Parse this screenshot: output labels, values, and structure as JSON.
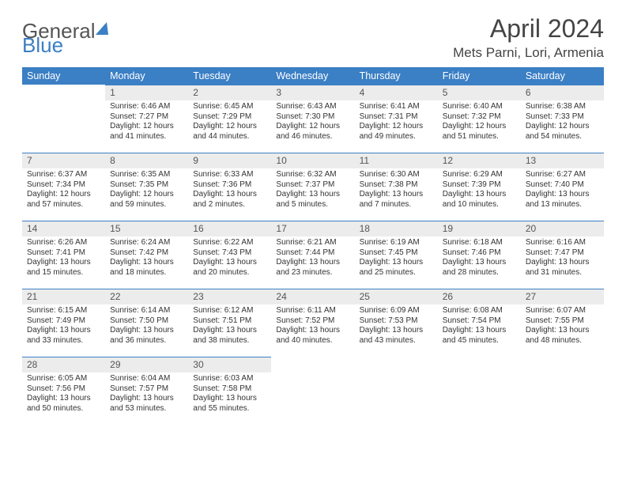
{
  "logo": {
    "word1": "General",
    "word2": "Blue"
  },
  "title": "April 2024",
  "location": "Mets Parni, Lori, Armenia",
  "colors": {
    "primary": "#3b7fc4",
    "header_bg": "#ececec",
    "text": "#333"
  },
  "day_headers": [
    "Sunday",
    "Monday",
    "Tuesday",
    "Wednesday",
    "Thursday",
    "Friday",
    "Saturday"
  ],
  "weeks": [
    [
      null,
      {
        "n": "1",
        "sr": "Sunrise: 6:46 AM",
        "ss": "Sunset: 7:27 PM",
        "dl": "Daylight: 12 hours and 41 minutes."
      },
      {
        "n": "2",
        "sr": "Sunrise: 6:45 AM",
        "ss": "Sunset: 7:29 PM",
        "dl": "Daylight: 12 hours and 44 minutes."
      },
      {
        "n": "3",
        "sr": "Sunrise: 6:43 AM",
        "ss": "Sunset: 7:30 PM",
        "dl": "Daylight: 12 hours and 46 minutes."
      },
      {
        "n": "4",
        "sr": "Sunrise: 6:41 AM",
        "ss": "Sunset: 7:31 PM",
        "dl": "Daylight: 12 hours and 49 minutes."
      },
      {
        "n": "5",
        "sr": "Sunrise: 6:40 AM",
        "ss": "Sunset: 7:32 PM",
        "dl": "Daylight: 12 hours and 51 minutes."
      },
      {
        "n": "6",
        "sr": "Sunrise: 6:38 AM",
        "ss": "Sunset: 7:33 PM",
        "dl": "Daylight: 12 hours and 54 minutes."
      }
    ],
    [
      {
        "n": "7",
        "sr": "Sunrise: 6:37 AM",
        "ss": "Sunset: 7:34 PM",
        "dl": "Daylight: 12 hours and 57 minutes."
      },
      {
        "n": "8",
        "sr": "Sunrise: 6:35 AM",
        "ss": "Sunset: 7:35 PM",
        "dl": "Daylight: 12 hours and 59 minutes."
      },
      {
        "n": "9",
        "sr": "Sunrise: 6:33 AM",
        "ss": "Sunset: 7:36 PM",
        "dl": "Daylight: 13 hours and 2 minutes."
      },
      {
        "n": "10",
        "sr": "Sunrise: 6:32 AM",
        "ss": "Sunset: 7:37 PM",
        "dl": "Daylight: 13 hours and 5 minutes."
      },
      {
        "n": "11",
        "sr": "Sunrise: 6:30 AM",
        "ss": "Sunset: 7:38 PM",
        "dl": "Daylight: 13 hours and 7 minutes."
      },
      {
        "n": "12",
        "sr": "Sunrise: 6:29 AM",
        "ss": "Sunset: 7:39 PM",
        "dl": "Daylight: 13 hours and 10 minutes."
      },
      {
        "n": "13",
        "sr": "Sunrise: 6:27 AM",
        "ss": "Sunset: 7:40 PM",
        "dl": "Daylight: 13 hours and 13 minutes."
      }
    ],
    [
      {
        "n": "14",
        "sr": "Sunrise: 6:26 AM",
        "ss": "Sunset: 7:41 PM",
        "dl": "Daylight: 13 hours and 15 minutes."
      },
      {
        "n": "15",
        "sr": "Sunrise: 6:24 AM",
        "ss": "Sunset: 7:42 PM",
        "dl": "Daylight: 13 hours and 18 minutes."
      },
      {
        "n": "16",
        "sr": "Sunrise: 6:22 AM",
        "ss": "Sunset: 7:43 PM",
        "dl": "Daylight: 13 hours and 20 minutes."
      },
      {
        "n": "17",
        "sr": "Sunrise: 6:21 AM",
        "ss": "Sunset: 7:44 PM",
        "dl": "Daylight: 13 hours and 23 minutes."
      },
      {
        "n": "18",
        "sr": "Sunrise: 6:19 AM",
        "ss": "Sunset: 7:45 PM",
        "dl": "Daylight: 13 hours and 25 minutes."
      },
      {
        "n": "19",
        "sr": "Sunrise: 6:18 AM",
        "ss": "Sunset: 7:46 PM",
        "dl": "Daylight: 13 hours and 28 minutes."
      },
      {
        "n": "20",
        "sr": "Sunrise: 6:16 AM",
        "ss": "Sunset: 7:47 PM",
        "dl": "Daylight: 13 hours and 31 minutes."
      }
    ],
    [
      {
        "n": "21",
        "sr": "Sunrise: 6:15 AM",
        "ss": "Sunset: 7:49 PM",
        "dl": "Daylight: 13 hours and 33 minutes."
      },
      {
        "n": "22",
        "sr": "Sunrise: 6:14 AM",
        "ss": "Sunset: 7:50 PM",
        "dl": "Daylight: 13 hours and 36 minutes."
      },
      {
        "n": "23",
        "sr": "Sunrise: 6:12 AM",
        "ss": "Sunset: 7:51 PM",
        "dl": "Daylight: 13 hours and 38 minutes."
      },
      {
        "n": "24",
        "sr": "Sunrise: 6:11 AM",
        "ss": "Sunset: 7:52 PM",
        "dl": "Daylight: 13 hours and 40 minutes."
      },
      {
        "n": "25",
        "sr": "Sunrise: 6:09 AM",
        "ss": "Sunset: 7:53 PM",
        "dl": "Daylight: 13 hours and 43 minutes."
      },
      {
        "n": "26",
        "sr": "Sunrise: 6:08 AM",
        "ss": "Sunset: 7:54 PM",
        "dl": "Daylight: 13 hours and 45 minutes."
      },
      {
        "n": "27",
        "sr": "Sunrise: 6:07 AM",
        "ss": "Sunset: 7:55 PM",
        "dl": "Daylight: 13 hours and 48 minutes."
      }
    ],
    [
      {
        "n": "28",
        "sr": "Sunrise: 6:05 AM",
        "ss": "Sunset: 7:56 PM",
        "dl": "Daylight: 13 hours and 50 minutes."
      },
      {
        "n": "29",
        "sr": "Sunrise: 6:04 AM",
        "ss": "Sunset: 7:57 PM",
        "dl": "Daylight: 13 hours and 53 minutes."
      },
      {
        "n": "30",
        "sr": "Sunrise: 6:03 AM",
        "ss": "Sunset: 7:58 PM",
        "dl": "Daylight: 13 hours and 55 minutes."
      },
      null,
      null,
      null,
      null
    ]
  ]
}
